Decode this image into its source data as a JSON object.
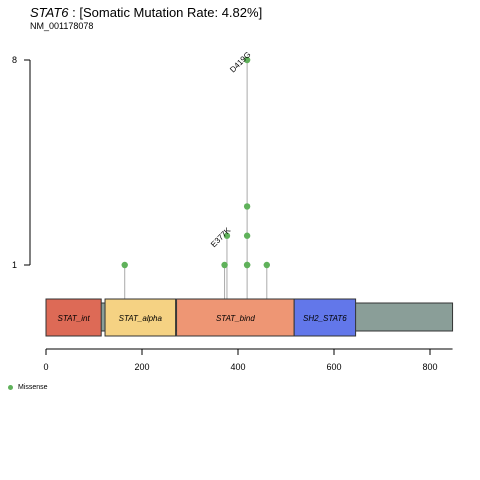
{
  "title": {
    "gene": "STAT6",
    "rest": " : [Somatic Mutation Rate: 4.82%]",
    "transcript": "NM_001178078"
  },
  "colors": {
    "missense": "#5fb15a",
    "backbone": "#8a9e98",
    "stem": "#aaaaaa"
  },
  "chart_data": {
    "type": "lollipop",
    "x_axis": {
      "range": [
        0,
        847
      ],
      "ticks": [
        0,
        200,
        400,
        600,
        800
      ]
    },
    "y_axis": {
      "ticks": [
        1,
        8
      ],
      "labels": [
        "1",
        "8"
      ]
    },
    "protein_length": 847,
    "domains": [
      {
        "name": "STAT_int",
        "start": 0,
        "end": 115,
        "color": "#dd6a56"
      },
      {
        "name": "STAT_alpha",
        "start": 123,
        "end": 270,
        "color": "#f5d283"
      },
      {
        "name": "STAT_bind",
        "start": 272,
        "end": 517,
        "color": "#ee9674"
      },
      {
        "name": "SH2_STAT6",
        "start": 517,
        "end": 645,
        "color": "#6277ea"
      }
    ],
    "mutations": [
      {
        "pos": 164,
        "count": 1,
        "label": ""
      },
      {
        "pos": 372,
        "count": 1,
        "label": ""
      },
      {
        "pos": 377,
        "count": 2,
        "label": "E377K"
      },
      {
        "pos": 419,
        "count": 1,
        "label": ""
      },
      {
        "pos": 419,
        "count": 1,
        "label": ""
      },
      {
        "pos": 419,
        "count": 2,
        "label": ""
      },
      {
        "pos": 419,
        "count": 3,
        "label": ""
      },
      {
        "pos": 419,
        "count": 8,
        "label": "D419G"
      },
      {
        "pos": 460,
        "count": 1,
        "label": ""
      }
    ],
    "legend": [
      {
        "label": "Missense",
        "color": "#5fb15a"
      }
    ]
  }
}
